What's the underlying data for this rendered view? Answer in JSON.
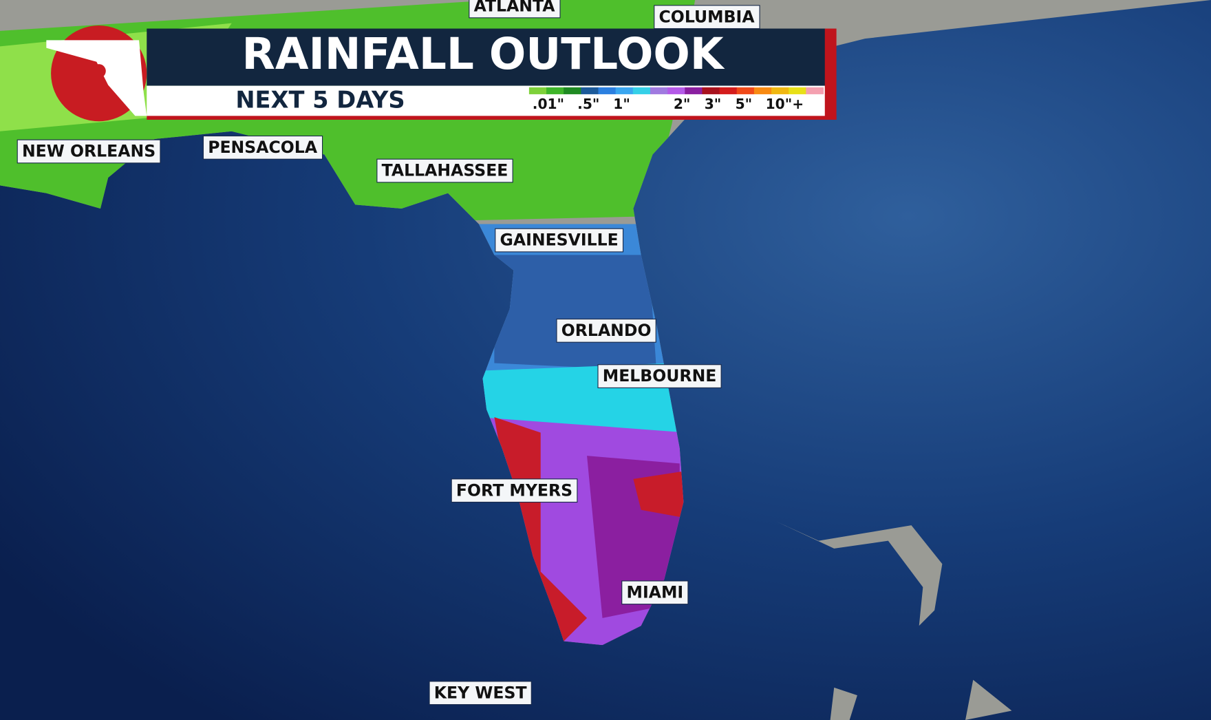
{
  "header": {
    "title": "RAINFALL OUTLOOK",
    "subtitle": "NEXT 5 DAYS"
  },
  "legend": {
    "labels": [
      ".01\"",
      ".5\"",
      "1\"",
      "2\"",
      "3\"",
      "5\"",
      "10\"+"
    ]
  },
  "cities": [
    "ATLANTA",
    "COLUMBIA",
    "NEW ORLEANS",
    "PENSACOLA",
    "TALLAHASSEE",
    "GAINESVILLE",
    "ORLANDO",
    "MELBOURNE",
    "FORT MYERS",
    "MIAMI",
    "KEY WEST"
  ]
}
